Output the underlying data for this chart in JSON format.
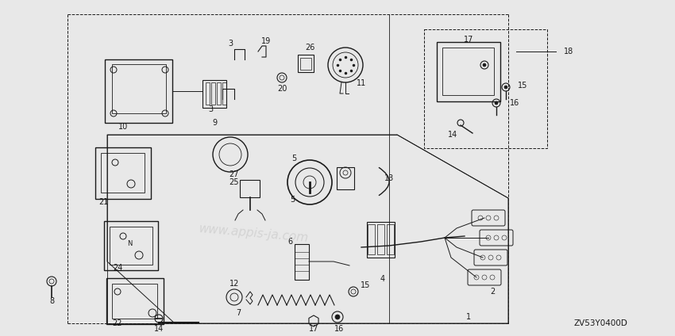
{
  "bg": "#e8e8e8",
  "fg": "#1a1a1a",
  "watermark": "#c0c0c0",
  "diagram_code": "ZV53Y0400D",
  "figsize": [
    8.5,
    4.24
  ],
  "dpi": 100
}
